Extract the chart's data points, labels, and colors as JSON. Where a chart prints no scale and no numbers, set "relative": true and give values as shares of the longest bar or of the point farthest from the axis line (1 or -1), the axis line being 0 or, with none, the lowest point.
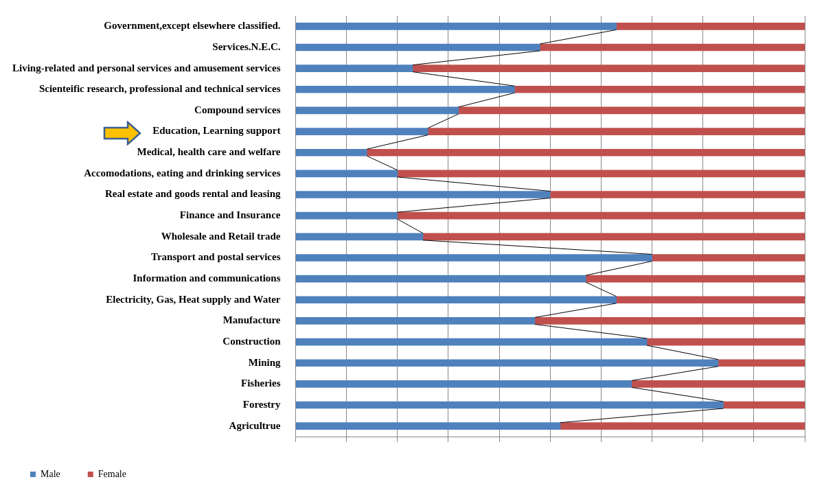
{
  "chart_data": {
    "type": "bar",
    "orientation": "horizontal",
    "stacked": true,
    "relative": true,
    "grid": "x",
    "legend": "bottom left",
    "categories": [
      "Government,except elsewhere classified.",
      "Services.N.E.C.",
      "Living-related and personal services and amusement services",
      "Scienteific research, professional and technical services",
      "Compound services",
      "Education, Learning support",
      "Medical, health care and welfare",
      "Accomodations, eating and drinking services",
      "Real estate and goods rental and leasing",
      "Finance and Insurance",
      "Wholesale and Retail trade",
      "Transport and postal services",
      "Information and communications",
      "Electricity, Gas, Heat supply and Water",
      "Manufacture",
      "Construction",
      "Mining",
      "Fisheries",
      "Forestry",
      "Agricultrue"
    ],
    "series": [
      {
        "name": "Male",
        "color": "#4f81bd",
        "values": [
          0.63,
          0.48,
          0.23,
          0.43,
          0.32,
          0.26,
          0.14,
          0.2,
          0.5,
          0.2,
          0.25,
          0.7,
          0.57,
          0.63,
          0.47,
          0.69,
          0.83,
          0.66,
          0.84,
          0.52
        ]
      },
      {
        "name": "Female",
        "color": "#c0504d",
        "values": [
          0.37,
          0.52,
          0.77,
          0.57,
          0.68,
          0.74,
          0.86,
          0.8,
          0.5,
          0.8,
          0.75,
          0.3,
          0.43,
          0.37,
          0.53,
          0.31,
          0.17,
          0.34,
          0.16,
          0.48
        ]
      }
    ]
  }
}
